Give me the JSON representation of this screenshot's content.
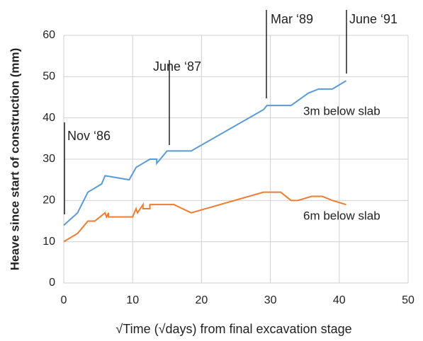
{
  "chart_data": {
    "type": "line",
    "ylabel": "Heave since start of construction (mm)",
    "xlabel": "√Time (√days)   from final excavation stage",
    "xlim": [
      0,
      50
    ],
    "xticks": [
      0,
      10,
      20,
      30,
      40,
      50
    ],
    "ylim": [
      0,
      60
    ],
    "yticks": [
      0,
      10,
      20,
      30,
      40,
      50,
      60
    ],
    "grid": true,
    "series": [
      {
        "name": "3m below slab",
        "color": "#5b9bd5",
        "x": [
          0,
          2,
          3.5,
          5.5,
          6,
          9.5,
          10.5,
          12.5,
          13.5,
          13.5,
          15,
          18.5,
          29,
          29.5,
          33,
          35.5,
          37,
          39,
          41
        ],
        "values": [
          14,
          17,
          22,
          24,
          26,
          25,
          28,
          30,
          30,
          29,
          32,
          32,
          42,
          43,
          43,
          46,
          47,
          47,
          49
        ]
      },
      {
        "name": "6m below slab",
        "color": "#ed7d31",
        "x": [
          0,
          2,
          3.5,
          4.5,
          6,
          6.2,
          6.5,
          6.5,
          9.5,
          10,
          10.5,
          10.7,
          11.5,
          11.5,
          12.5,
          12.5,
          16,
          18.5,
          29,
          31.5,
          33,
          34,
          36,
          37.5,
          39,
          41
        ],
        "values": [
          10,
          12,
          15,
          15,
          17,
          16,
          17,
          16,
          16,
          16,
          18,
          17,
          19,
          18,
          18,
          19,
          19,
          17,
          22,
          22,
          20,
          20,
          21,
          21,
          20,
          19
        ]
      }
    ],
    "annotations": [
      "Nov ‘86",
      "June ‘87",
      "Mar ‘89",
      "June ‘91"
    ]
  }
}
